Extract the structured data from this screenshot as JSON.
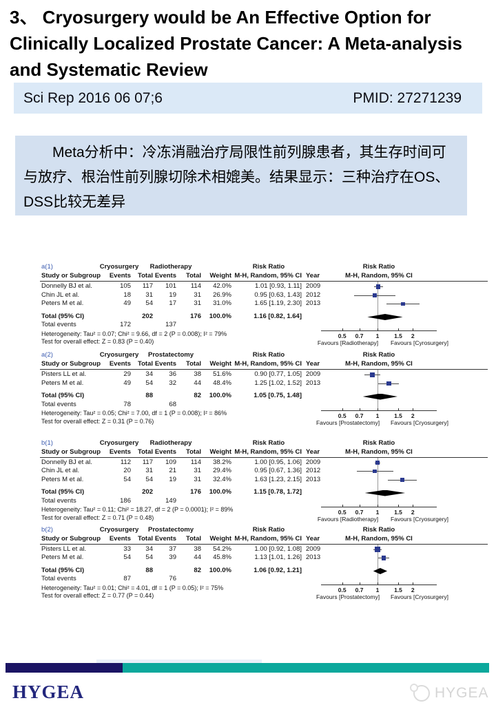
{
  "title": {
    "text": "3、 Cryosurgery would be An Effective Option for Clinically Localized Prostate Cancer: A Meta-analysis and Systematic Review"
  },
  "pub_bar": {
    "journal": "Sci Rep 2016 06 07;6",
    "pmid": "PMID: 27271239"
  },
  "summary_box": {
    "text": "Meta分析中：冷冻消融治疗局限性前列腺患者，其生存时间可与放疗、根治性前列腺切除术相媲美。结果显示：三种治疗在OS、DSS比较无差异"
  },
  "footer": {
    "brand": "HYGEA",
    "watermark": "HYGEA"
  },
  "colors": {
    "title_text": "#000000",
    "pub_bar_bg": "#dbe9f7",
    "summary_bg": "#d3e0f0",
    "footer_navy": "#1b1464",
    "footer_teal": "#0ba89c",
    "brand_navy": "#23277d",
    "marker_blue": "#2b3a8f",
    "label_blue": "#3c5cb0",
    "diamond_black": "#000000"
  },
  "chart_data": [
    {
      "type": "forest",
      "id": "a(1)",
      "group1": "Cryosurgery",
      "group2": "Radiotherapy",
      "risk_ratio_label": "Risk Ratio",
      "method_label": "M-H, Random, 95% CI",
      "columns": [
        "Study or Subgroup",
        "Events",
        "Total",
        "Events",
        "Total",
        "Weight",
        "M-H, Random, 95% CI",
        "Year"
      ],
      "studies": [
        {
          "study": "Donnelly BJ et al.",
          "events1": "105",
          "total1": "117",
          "events2": "101",
          "total2": "114",
          "weight": "42.0%",
          "rr": 1.01,
          "ci_low": 0.93,
          "ci_high": 1.11,
          "ci_text": "1.01 [0.93, 1.11]",
          "year": "2009"
        },
        {
          "study": "Chin JL et al.",
          "events1": "18",
          "total1": "31",
          "events2": "19",
          "total2": "31",
          "weight": "26.9%",
          "rr": 0.95,
          "ci_low": 0.63,
          "ci_high": 1.43,
          "ci_text": "0.95 [0.63, 1.43]",
          "year": "2012"
        },
        {
          "study": "Peters M et al.",
          "events1": "49",
          "total1": "54",
          "events2": "17",
          "total2": "31",
          "weight": "31.0%",
          "rr": 1.65,
          "ci_low": 1.19,
          "ci_high": 2.3,
          "ci_text": "1.65 [1.19, 2.30]",
          "year": "2013"
        }
      ],
      "total": {
        "label": "Total (95% CI)",
        "total1": "202",
        "total2": "176",
        "weight": "100.0%",
        "rr": 1.16,
        "ci_low": 0.82,
        "ci_high": 1.64,
        "ci_text": "1.16 [0.82, 1.64]"
      },
      "total_events": {
        "label": "Total events",
        "events1": "172",
        "events2": "137"
      },
      "heterogeneity": "Heterogeneity: Tau² = 0.07; Chi² = 9.66, df = 2 (P = 0.008); I² = 79%",
      "overall": "Test for overall effect: Z = 0.83 (P = 0.40)",
      "axis_ticks": [
        "0.5",
        "0.7",
        "1",
        "1.5",
        "2"
      ],
      "axis_range": [
        0.33,
        3.2
      ],
      "favours_left": "Favours [Radiotherapy]",
      "favours_right": "Favours [Cyrosurgery]"
    },
    {
      "type": "forest",
      "id": "a(2)",
      "group1": "Cryosurgery",
      "group2": "Prostatectomy",
      "risk_ratio_label": "Risk Ratio",
      "method_label": "M-H, Random, 95% CI",
      "columns": [
        "Study or Subgroup",
        "Events",
        "Total",
        "Events",
        "Total",
        "Weight",
        "M-H, Random, 95% CI",
        "Year"
      ],
      "studies": [
        {
          "study": "Pisters LL et al.",
          "events1": "29",
          "total1": "34",
          "events2": "36",
          "total2": "38",
          "weight": "51.6%",
          "rr": 0.9,
          "ci_low": 0.77,
          "ci_high": 1.05,
          "ci_text": "0.90 [0.77, 1.05]",
          "year": "2009"
        },
        {
          "study": "Peters M et al.",
          "events1": "49",
          "total1": "54",
          "events2": "32",
          "total2": "44",
          "weight": "48.4%",
          "rr": 1.25,
          "ci_low": 1.02,
          "ci_high": 1.52,
          "ci_text": "1.25 [1.02, 1.52]",
          "year": "2013"
        }
      ],
      "total": {
        "label": "Total (95% CI)",
        "total1": "88",
        "total2": "82",
        "weight": "100.0%",
        "rr": 1.05,
        "ci_low": 0.75,
        "ci_high": 1.48,
        "ci_text": "1.05 [0.75, 1.48]"
      },
      "total_events": {
        "label": "Total events",
        "events1": "78",
        "events2": "68"
      },
      "heterogeneity": "Heterogeneity: Tau² = 0.05; Chi² = 7.00, df = 1 (P = 0.008); I² = 86%",
      "overall": "Test for overall effect: Z = 0.31 (P = 0.76)",
      "axis_ticks": [
        "0.5",
        "0.7",
        "1",
        "1.5",
        "2"
      ],
      "axis_range": [
        0.33,
        3.2
      ],
      "favours_left": "Favours [Prostatectomy]",
      "favours_right": "Favours [Cryosurgery]"
    },
    {
      "type": "forest",
      "id": "b(1)",
      "group1": "Cryosurgery",
      "group2": "Radiotherapy",
      "risk_ratio_label": "Risk Ratio",
      "method_label": "M-H, Random, 95% CI",
      "columns": [
        "Study or Subgroup",
        "Events",
        "Total",
        "Events",
        "Total",
        "Weight",
        "M-H, Random, 95% CI",
        "Year"
      ],
      "studies": [
        {
          "study": "Donnelly BJ et al.",
          "events1": "112",
          "total1": "117",
          "events2": "109",
          "total2": "114",
          "weight": "38.2%",
          "rr": 1.0,
          "ci_low": 0.95,
          "ci_high": 1.06,
          "ci_text": "1.00 [0.95, 1.06]",
          "year": "2009"
        },
        {
          "study": "Chin JL et al.",
          "events1": "20",
          "total1": "31",
          "events2": "21",
          "total2": "31",
          "weight": "29.4%",
          "rr": 0.95,
          "ci_low": 0.67,
          "ci_high": 1.36,
          "ci_text": "0.95 [0.67, 1.36]",
          "year": "2012"
        },
        {
          "study": "Peters M et al.",
          "events1": "54",
          "total1": "54",
          "events2": "19",
          "total2": "31",
          "weight": "32.4%",
          "rr": 1.63,
          "ci_low": 1.23,
          "ci_high": 2.15,
          "ci_text": "1.63 [1.23, 2.15]",
          "year": "2013"
        }
      ],
      "total": {
        "label": "Total (95% CI)",
        "total1": "202",
        "total2": "176",
        "weight": "100.0%",
        "rr": 1.15,
        "ci_low": 0.78,
        "ci_high": 1.72,
        "ci_text": "1.15 [0.78, 1.72]"
      },
      "total_events": {
        "label": "Total events",
        "events1": "186",
        "events2": "149"
      },
      "heterogeneity": "Heterogeneity: Tau² = 0.11; Chi² = 18.27, df = 2 (P = 0.0001); I² = 89%",
      "overall": "Test for overall effect: Z = 0.71 (P = 0.48)",
      "axis_ticks": [
        "0.5",
        "0.7",
        "1",
        "1.5",
        "2"
      ],
      "axis_range": [
        0.33,
        3.2
      ],
      "favours_left": "Favours [Radiotherapy]",
      "favours_right": "Favours [Cryosurgery]"
    },
    {
      "type": "forest",
      "id": "b(2)",
      "group1": "Cryosurgery",
      "group2": "Prostatectomy",
      "risk_ratio_label": "Risk Ratio",
      "method_label": "M-H, Random, 95% CI",
      "columns": [
        "Study or Subgroup",
        "Events",
        "Total",
        "Events",
        "Total",
        "Weight",
        "M-H, Random, 95% CI",
        "Year"
      ],
      "studies": [
        {
          "study": "Pisters LL et al.",
          "events1": "33",
          "total1": "34",
          "events2": "37",
          "total2": "38",
          "weight": "54.2%",
          "rr": 1.0,
          "ci_low": 0.92,
          "ci_high": 1.08,
          "ci_text": "1.00 [0.92, 1.08]",
          "year": "2009"
        },
        {
          "study": "Peters M et al.",
          "events1": "54",
          "total1": "54",
          "events2": "39",
          "total2": "44",
          "weight": "45.8%",
          "rr": 1.13,
          "ci_low": 1.01,
          "ci_high": 1.26,
          "ci_text": "1.13 [1.01, 1.26]",
          "year": "2013"
        }
      ],
      "total": {
        "label": "Total (95% CI)",
        "total1": "88",
        "total2": "82",
        "weight": "100.0%",
        "rr": 1.06,
        "ci_low": 0.92,
        "ci_high": 1.21,
        "ci_text": "1.06 [0.92, 1.21]"
      },
      "total_events": {
        "label": "Total events",
        "events1": "87",
        "events2": "76"
      },
      "heterogeneity": "Heterogeneity: Tau² = 0.01; Chi² = 4.01, df = 1 (P = 0.05); I² = 75%",
      "overall": "Test for overall effect: Z = 0.77 (P = 0.44)",
      "axis_ticks": [
        "0.5",
        "0.7",
        "1",
        "1.5",
        "2"
      ],
      "axis_range": [
        0.33,
        3.2
      ],
      "favours_left": "Favours [Prostatectomy]",
      "favours_right": "Favours [Cryosurgery]"
    }
  ]
}
